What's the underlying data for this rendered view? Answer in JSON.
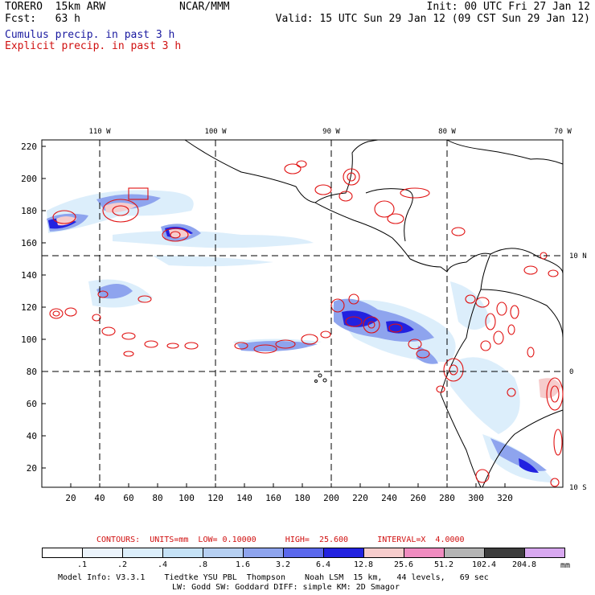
{
  "header": {
    "title": "TORERO  15km ARW",
    "center": "NCAR/MMM",
    "init": "Init: 00 UTC Fri 27 Jan 12",
    "fcst": "Fcst:   63 h",
    "valid": "Valid: 15 UTC Sun 29 Jan 12 (09 CST Sun 29 Jan 12)"
  },
  "legend": {
    "cumulus": "Cumulus precip. in past 3 h",
    "explicit": "Explicit precip. in past 3 h"
  },
  "map": {
    "lon_labels": [
      "110 W",
      "100 W",
      "90 W",
      "80 W",
      "70 W"
    ],
    "lat_labels": [
      "10 N",
      "0",
      "10 S"
    ],
    "y_ticks": [
      "220",
      "200",
      "180",
      "160",
      "140",
      "120",
      "100",
      "80",
      "60",
      "40",
      "20"
    ],
    "x_ticks": [
      "20",
      "40",
      "60",
      "80",
      "100",
      "120",
      "140",
      "160",
      "180",
      "200",
      "220",
      "240",
      "260",
      "280",
      "300",
      "320"
    ]
  },
  "contour_info": "CONTOURS:  UNITS=mm  LOW= 0.10000      HIGH=  25.600      INTERVAL=X  4.0000",
  "colorbar": {
    "labels": [
      ".1",
      ".2",
      ".4",
      ".8",
      "1.6",
      "3.2",
      "6.4",
      "12.8",
      "25.6",
      "51.2",
      "102.4",
      "204.8"
    ],
    "units": "mm",
    "colors": [
      "#ffffff",
      "#ebf3fb",
      "#dceefb",
      "#c5e2f6",
      "#b6d0f2",
      "#8ea4ee",
      "#5a68ec",
      "#2222e0",
      "#f6cccc",
      "#f08cc0",
      "#b4b4b4",
      "#3c3c3c",
      "#d8a8f0"
    ]
  },
  "model_info": {
    "line1": "Model Info: V3.3.1    Tiedtke YSU PBL  Thompson    Noah LSM  15 km,   44 levels,   69 sec",
    "line2": "LW: Godd SW: Goddard DIFF: simple KM: 2D Smagor"
  }
}
